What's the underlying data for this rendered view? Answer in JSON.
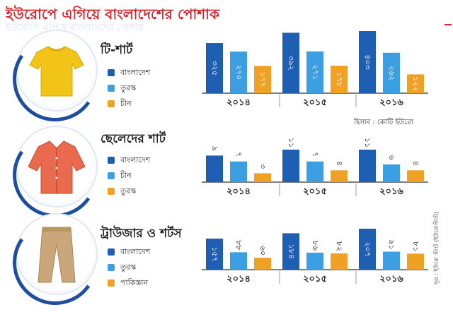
{
  "page": {
    "title": "ইউরোপে এগিয়ে বাংলাদেশের পোশাক",
    "unit_note": "হিসাব : কোটি ইউরো",
    "source": "সূত্র : ইউরো স্ট্যাট (ইউরোস্ট্যাট)"
  },
  "colors": {
    "dark": "#1f5fb3",
    "light": "#3aa0e3",
    "orange": "#f0a023"
  },
  "chart_data": [
    {
      "type": "bar",
      "title": "টি-শার্ট",
      "categories": [
        "২০১৪",
        "২০১৫",
        "২০১৬"
      ],
      "series": [
        {
          "name": "বাংলাদেশ",
          "values": [
            325,
            392,
            403
          ],
          "labels": [
            "৩২৫",
            "৩৯২",
            "৪০৩"
          ]
        },
        {
          "name": "তুরস্ক",
          "values": [
            270,
            271,
            262
          ],
          "labels": [
            "২৭০",
            "২৭১",
            "২৬২"
          ]
        },
        {
          "name": "চীন",
          "values": [
            177,
            178,
            122
          ],
          "labels": [
            "১৭৭",
            "১৭৮",
            "১২২"
          ]
        }
      ],
      "ylim": [
        0,
        420
      ]
    },
    {
      "type": "bar",
      "title": "ছেলেদের শার্ট",
      "categories": [
        "২০১৪",
        "২০১৫",
        "২০১৬"
      ],
      "series": [
        {
          "name": "বাংলাদেশ",
          "values": [
            9,
            11,
            11
          ],
          "labels": [
            "৯",
            "১১",
            "১১"
          ]
        },
        {
          "name": "চীন",
          "values": [
            7,
            7,
            6
          ],
          "labels": [
            "৭",
            "৭",
            "৬"
          ]
        },
        {
          "name": "তুরস্ক",
          "values": [
            3,
            4,
            4
          ],
          "labels": [
            "৩",
            "৪",
            "৪"
          ]
        }
      ],
      "ylim": [
        0,
        20
      ]
    },
    {
      "type": "bar",
      "title": "ট্রাউজার ও শর্টস",
      "categories": [
        "২০১৪",
        "২০১৫",
        "২০১৬"
      ],
      "series": [
        {
          "name": "বাংলাদেশ",
          "values": [
            157,
            184,
            207
          ],
          "labels": [
            "১৫৭",
            "১৮৪",
            "২০৭"
          ]
        },
        {
          "name": "তুরস্ক",
          "values": [
            88,
            86,
            91
          ],
          "labels": [
            "৮৮",
            "৮৬",
            "৯১"
          ]
        },
        {
          "name": "পাকিস্তান",
          "values": [
            60,
            82,
            81
          ],
          "labels": [
            "৬০",
            "৮২",
            "৮১"
          ]
        }
      ],
      "ylim": [
        0,
        220
      ]
    }
  ]
}
